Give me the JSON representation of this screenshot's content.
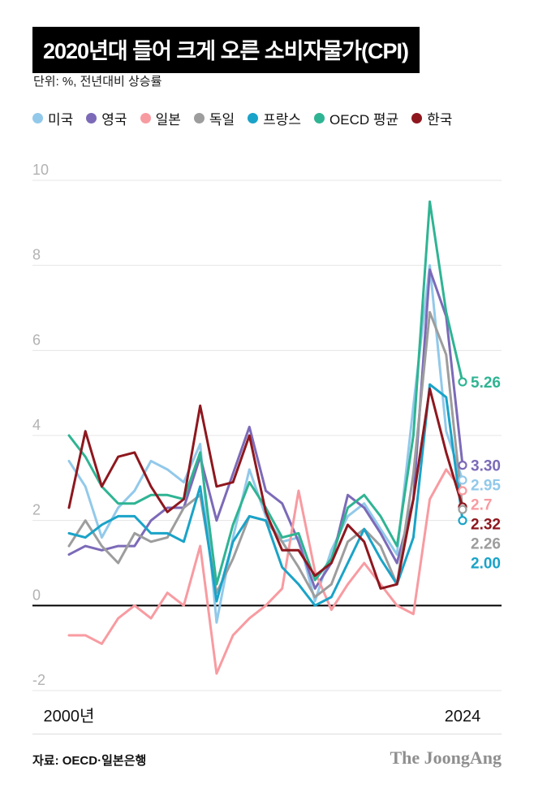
{
  "header": {
    "title": "2020년대 들어 크게 오른 소비자물가(CPI)",
    "subtitle": "단위: %, 전년대비 상승률"
  },
  "chart_data": {
    "type": "line",
    "title": "2020년대 들어 크게 오른 소비자물가(CPI)",
    "xlabel": "",
    "ylabel": "%, 전년대비 상승률",
    "ylim": [
      -2,
      10
    ],
    "yticks": [
      -2,
      0,
      2,
      4,
      6,
      8,
      10
    ],
    "grid": true,
    "legend_position": "top",
    "x": [
      2000,
      2001,
      2002,
      2003,
      2004,
      2005,
      2006,
      2007,
      2008,
      2009,
      2010,
      2011,
      2012,
      2013,
      2014,
      2015,
      2016,
      2017,
      2018,
      2019,
      2020,
      2021,
      2022,
      2023,
      2024
    ],
    "xticks": [
      {
        "year": 2000,
        "label": "2000년"
      },
      {
        "year": 2024,
        "label": "2024"
      }
    ],
    "series": [
      {
        "key": "us",
        "name": "미국",
        "color": "#92c9ea",
        "end_label": "2.95",
        "values": [
          3.4,
          2.8,
          1.6,
          2.3,
          2.7,
          3.4,
          3.2,
          2.9,
          3.8,
          -0.4,
          1.6,
          3.2,
          2.1,
          1.5,
          1.6,
          0.1,
          1.3,
          2.1,
          2.4,
          1.8,
          1.2,
          4.7,
          8.0,
          4.1,
          2.95
        ]
      },
      {
        "key": "uk",
        "name": "영국",
        "color": "#7c6ab8",
        "end_label": "3.30",
        "values": [
          1.2,
          1.4,
          1.3,
          1.4,
          1.4,
          2.0,
          2.3,
          2.3,
          3.5,
          2.0,
          3.1,
          4.2,
          2.7,
          2.4,
          1.5,
          0.4,
          1.0,
          2.6,
          2.3,
          1.7,
          1.0,
          2.5,
          7.9,
          6.8,
          3.3
        ]
      },
      {
        "key": "japan",
        "name": "일본",
        "color": "#f89ba1",
        "end_label": "2.7",
        "values": [
          -0.7,
          -0.7,
          -0.9,
          -0.3,
          0.0,
          -0.3,
          0.3,
          0.0,
          1.4,
          -1.6,
          -0.7,
          -0.3,
          0.0,
          0.4,
          2.7,
          0.8,
          -0.1,
          0.5,
          1.0,
          0.5,
          0.0,
          -0.2,
          2.5,
          3.2,
          2.7
        ]
      },
      {
        "key": "germany",
        "name": "독일",
        "color": "#9d9d9d",
        "end_label": "2.26",
        "values": [
          1.4,
          2.0,
          1.4,
          1.0,
          1.7,
          1.5,
          1.6,
          2.3,
          2.6,
          0.3,
          1.1,
          2.1,
          2.0,
          1.5,
          0.9,
          0.2,
          0.5,
          1.5,
          1.8,
          1.4,
          0.5,
          3.1,
          6.9,
          5.9,
          2.26
        ]
      },
      {
        "key": "france",
        "name": "프랑스",
        "color": "#1aa3c8",
        "end_label": "2.00",
        "values": [
          1.7,
          1.6,
          1.9,
          2.1,
          2.1,
          1.7,
          1.7,
          1.5,
          2.8,
          0.1,
          1.5,
          2.1,
          2.0,
          0.9,
          0.5,
          0.0,
          0.2,
          1.0,
          1.8,
          1.1,
          0.5,
          1.6,
          5.2,
          4.9,
          2.0
        ]
      },
      {
        "key": "oecd",
        "name": "OECD 평균",
        "color": "#2fb493",
        "end_label": "5.26",
        "values": [
          4.0,
          3.5,
          2.8,
          2.4,
          2.4,
          2.6,
          2.6,
          2.5,
          3.6,
          0.5,
          1.9,
          2.9,
          2.3,
          1.6,
          1.7,
          0.6,
          1.1,
          2.3,
          2.6,
          2.1,
          1.4,
          4.0,
          9.5,
          6.9,
          5.26
        ]
      },
      {
        "key": "korea",
        "name": "한국",
        "color": "#8e171e",
        "end_label": "2.32",
        "values": [
          2.3,
          4.1,
          2.8,
          3.5,
          3.6,
          2.8,
          2.2,
          2.5,
          4.7,
          2.8,
          2.9,
          4.0,
          2.2,
          1.3,
          1.3,
          0.7,
          1.0,
          1.9,
          1.5,
          0.4,
          0.5,
          2.5,
          5.1,
          3.6,
          2.32
        ]
      }
    ]
  },
  "footer": {
    "source": "자료: OECD·일본은행",
    "logo": "The JoongAng"
  }
}
